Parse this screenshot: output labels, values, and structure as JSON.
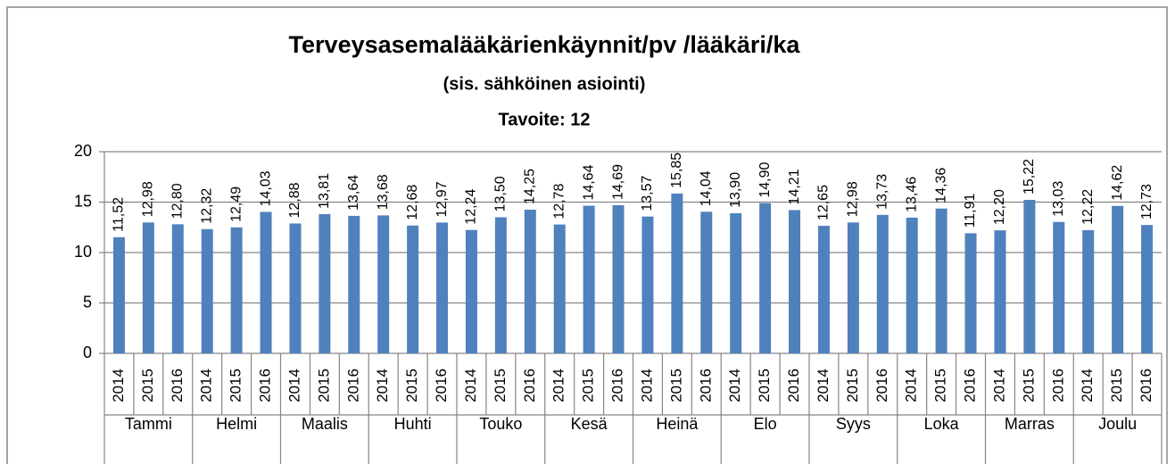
{
  "chart_data": {
    "type": "bar",
    "title": "Terveysasemalääkärienkäynnit/pv /lääkäri/ka",
    "subtitle": "(sis. sähköinen asiointi)",
    "annotation": "Tavoite: 12",
    "groups": [
      "Tammi",
      "Helmi",
      "Maalis",
      "Huhti",
      "Touko",
      "Kesä",
      "Heinä",
      "Elo",
      "Syys",
      "Loka",
      "Marras",
      "Joulu"
    ],
    "categories": [
      "2014",
      "2015",
      "2016",
      "2014",
      "2015",
      "2016",
      "2014",
      "2015",
      "2016",
      "2014",
      "2015",
      "2016",
      "2014",
      "2015",
      "2016",
      "2014",
      "2015",
      "2016",
      "2014",
      "2015",
      "2016",
      "2014",
      "2015",
      "2016",
      "2014",
      "2015",
      "2016",
      "2014",
      "2015",
      "2016",
      "2014",
      "2015",
      "2016",
      "2014",
      "2015",
      "2016"
    ],
    "values": [
      11.52,
      12.98,
      12.8,
      12.32,
      12.49,
      14.03,
      12.88,
      13.81,
      13.64,
      13.68,
      12.68,
      12.97,
      12.24,
      13.5,
      14.25,
      12.78,
      14.64,
      14.69,
      13.57,
      15.85,
      14.04,
      13.9,
      14.9,
      14.21,
      12.65,
      12.98,
      13.73,
      13.46,
      14.36,
      11.91,
      12.2,
      15.22,
      13.03,
      12.22,
      14.62,
      12.73
    ],
    "value_labels": [
      "11,52",
      "12,98",
      "12,80",
      "12,32",
      "12,49",
      "14,03",
      "12,88",
      "13,81",
      "13,64",
      "13,68",
      "12,68",
      "12,97",
      "12,24",
      "13,50",
      "14,25",
      "12,78",
      "14,64",
      "14,69",
      "13,57",
      "15,85",
      "14,04",
      "13,90",
      "14,90",
      "14,21",
      "12,65",
      "12,98",
      "13,73",
      "13,46",
      "14,36",
      "11,91",
      "12,20",
      "15,22",
      "13,03",
      "12,22",
      "14,62",
      "12,73"
    ],
    "color": "#4f81bd",
    "ylim": [
      0,
      20
    ],
    "yticks": [
      0,
      5,
      10,
      15,
      20
    ],
    "grid": true
  }
}
